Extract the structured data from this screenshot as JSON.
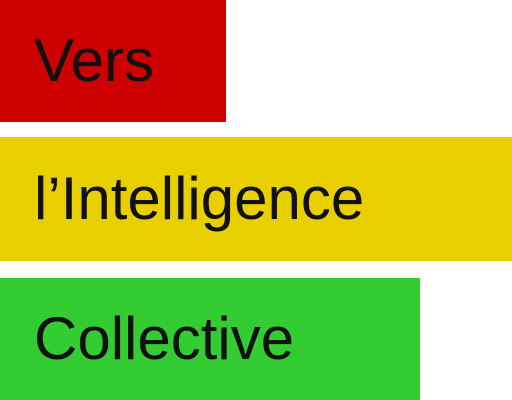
{
  "lines": [
    {
      "text": "Vers",
      "color": "#cc0000"
    },
    {
      "text": "l’Intelligence",
      "color": "#e8d000"
    },
    {
      "text": "Collective",
      "color": "#33cc33"
    }
  ]
}
